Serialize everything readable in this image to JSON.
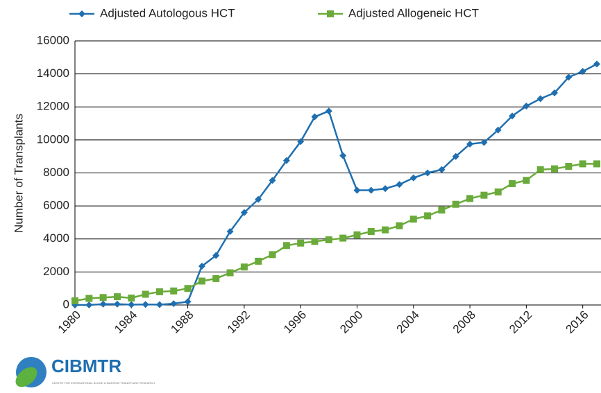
{
  "chart_data": {
    "type": "line",
    "y_label": "Number of Transplants",
    "xlim": [
      1980,
      2017
    ],
    "xticks": [
      1980,
      1984,
      1988,
      1992,
      1996,
      2000,
      2004,
      2008,
      2012,
      2016
    ],
    "ylim": [
      0,
      16000
    ],
    "yticks": [
      0,
      2000,
      4000,
      6000,
      8000,
      10000,
      12000,
      14000,
      16000
    ],
    "grid": true,
    "legend": "top",
    "x": [
      1980,
      1981,
      1982,
      1983,
      1984,
      1985,
      1986,
      1987,
      1988,
      1989,
      1990,
      1991,
      1992,
      1993,
      1994,
      1995,
      1996,
      1997,
      1998,
      1999,
      2000,
      2001,
      2002,
      2003,
      2004,
      2005,
      2006,
      2007,
      2008,
      2009,
      2010,
      2011,
      2012,
      2013,
      2014,
      2015,
      2016,
      2017
    ],
    "series": [
      {
        "name": "Adjusted Autologous HCT",
        "color": "#1f6fb0",
        "marker": "diamond",
        "values": [
          0,
          0,
          50,
          50,
          20,
          30,
          20,
          80,
          200,
          2350,
          3000,
          4450,
          5600,
          6400,
          7550,
          8750,
          9900,
          11400,
          11750,
          9050,
          6950,
          6950,
          7050,
          7300,
          7700,
          8000,
          8200,
          9000,
          9750,
          9850,
          10600,
          11450,
          12050,
          12500,
          12850,
          13800,
          14150,
          14600
        ]
      },
      {
        "name": "Adjusted Allogeneic HCT",
        "color": "#6aaa3a",
        "marker": "square",
        "values": [
          250,
          400,
          450,
          500,
          420,
          650,
          800,
          850,
          1000,
          1450,
          1600,
          1950,
          2300,
          2650,
          3050,
          3600,
          3750,
          3850,
          3950,
          4050,
          4250,
          4450,
          4550,
          4800,
          5200,
          5400,
          5750,
          6100,
          6450,
          6650,
          6850,
          7350,
          7550,
          8200,
          8250,
          8400,
          8550,
          8550
        ]
      }
    ]
  },
  "logo": {
    "name": "CIBMTR",
    "subtitle": "CENTER FOR INTERNATIONAL BLOOD & MARROW TRANSPLANT RESEARCH"
  }
}
